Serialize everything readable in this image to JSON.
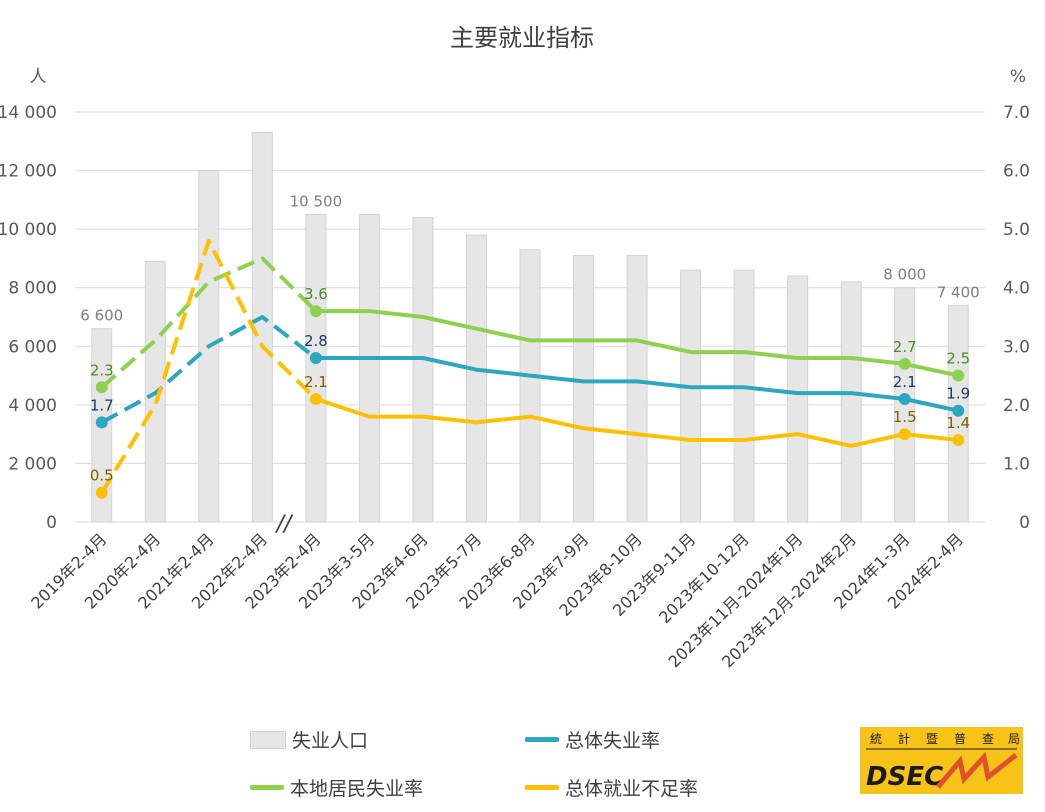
{
  "chart_data": {
    "type": "bar",
    "title": "主要就业指标",
    "left_unit": "人",
    "right_unit": "%",
    "ylim_left": [
      0,
      14000
    ],
    "ylim_right": [
      0,
      7.0
    ],
    "left_ticks": [
      "0",
      "2 000",
      "4 000",
      "6 000",
      "8 000",
      "10 000",
      "12 000",
      "14 000"
    ],
    "right_ticks": [
      "0",
      "1.0",
      "2.0",
      "3.0",
      "4.0",
      "5.0",
      "6.0",
      "7.0"
    ],
    "break_marker": "//",
    "categories": [
      "2019年2-4月",
      "2020年2-4月",
      "2021年2-4月",
      "2022年2-4月",
      "2023年2-4月",
      "2023年3-5月",
      "2023年4-6月",
      "2023年5-7月",
      "2023年6-8月",
      "2023年7-9月",
      "2023年8-10月",
      "2023年9-11月",
      "2023年10-12月",
      "2023年11月-2024年1月",
      "2023年12月-2024年2月",
      "2024年1-3月",
      "2024年2-4月"
    ],
    "bar_series": {
      "name": "失业人口",
      "color": "#e6e6e6",
      "values": [
        6600,
        8900,
        12000,
        13300,
        10500,
        10500,
        10400,
        9800,
        9300,
        9100,
        9100,
        8600,
        8600,
        8400,
        8200,
        8000,
        7400
      ],
      "labels": [
        "6 600",
        "",
        "",
        "",
        "10 500",
        "",
        "",
        "",
        "",
        "",
        "",
        "",
        "",
        "",
        "",
        "8 000",
        "7 400"
      ]
    },
    "line_series": [
      {
        "name": "总体失业率",
        "color": "#2ba8c0",
        "label_color": "#1f3864",
        "values": [
          1.7,
          2.2,
          3.0,
          3.5,
          2.8,
          2.8,
          2.8,
          2.6,
          2.5,
          2.4,
          2.4,
          2.3,
          2.3,
          2.2,
          2.2,
          2.1,
          1.9
        ],
        "labels": [
          "1.7",
          "",
          "",
          "",
          "2.8",
          "",
          "",
          "",
          "",
          "",
          "",
          "",
          "",
          "",
          "",
          "2.1",
          "1.9"
        ]
      },
      {
        "name": "本地居民失业率",
        "color": "#8fd14f",
        "label_color": "#4e8a2a",
        "values": [
          2.3,
          3.1,
          4.1,
          4.5,
          3.6,
          3.6,
          3.5,
          3.3,
          3.1,
          3.1,
          3.1,
          2.9,
          2.9,
          2.8,
          2.8,
          2.7,
          2.5
        ],
        "labels": [
          "2.3",
          "",
          "",
          "",
          "3.6",
          "",
          "",
          "",
          "",
          "",
          "",
          "",
          "",
          "",
          "",
          "2.7",
          "2.5"
        ]
      },
      {
        "name": "总体就业不足率",
        "color": "#ffc000",
        "label_color": "#806000",
        "values": [
          0.5,
          2.0,
          4.8,
          3.0,
          2.1,
          1.8,
          1.8,
          1.7,
          1.8,
          1.6,
          1.5,
          1.4,
          1.4,
          1.5,
          1.3,
          1.5,
          1.4
        ],
        "labels": [
          "0.5",
          "",
          "",
          "",
          "2.1",
          "",
          "",
          "",
          "",
          "",
          "",
          "",
          "",
          "",
          "",
          "1.5",
          "1.4"
        ]
      }
    ]
  },
  "legend": {
    "bar": "失业人口",
    "overall_unemp": "总体失业率",
    "local_unemp": "本地居民失业率",
    "underemp": "总体就业不足率"
  },
  "logo": {
    "chars": [
      "統",
      "計",
      "暨",
      "普",
      "查",
      "局"
    ],
    "text": "DSEC",
    "colors": {
      "bg": "#f7c318",
      "ink": "#1a1a1a",
      "accent": "#e0502a"
    }
  }
}
